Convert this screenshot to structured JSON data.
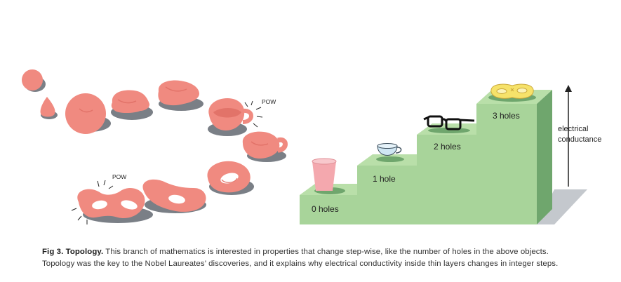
{
  "figure": {
    "pow_label_1": "POW",
    "pow_label_2": "POW",
    "steps": [
      {
        "label": "0 holes"
      },
      {
        "label": "1 hole"
      },
      {
        "label": "2 holes"
      },
      {
        "label": "3 holes"
      }
    ],
    "arrow_label_line1": "electrical",
    "arrow_label_line2": "conductance",
    "colors": {
      "clay": "#f08a80",
      "clay_dark": "#e27369",
      "shadow": "#7a7f86",
      "step_front": "#a8d49a",
      "step_side": "#6fa66d",
      "step_top": "#b9dfa9",
      "arrow_shadow": "#c4c8cd"
    },
    "icons": [
      "pink-cup-icon",
      "teacup-icon",
      "eyeglasses-icon",
      "pretzel-icon"
    ]
  },
  "caption": {
    "lead": "Fig 3. Topology.",
    "text": "This branch of mathematics is interested in properties that change step-wise, like the number of holes in the above objects. Topology was the key to the Nobel Laureates’ discoveries, and it explains why electrical conductivity inside thin layers changes in integer steps."
  }
}
